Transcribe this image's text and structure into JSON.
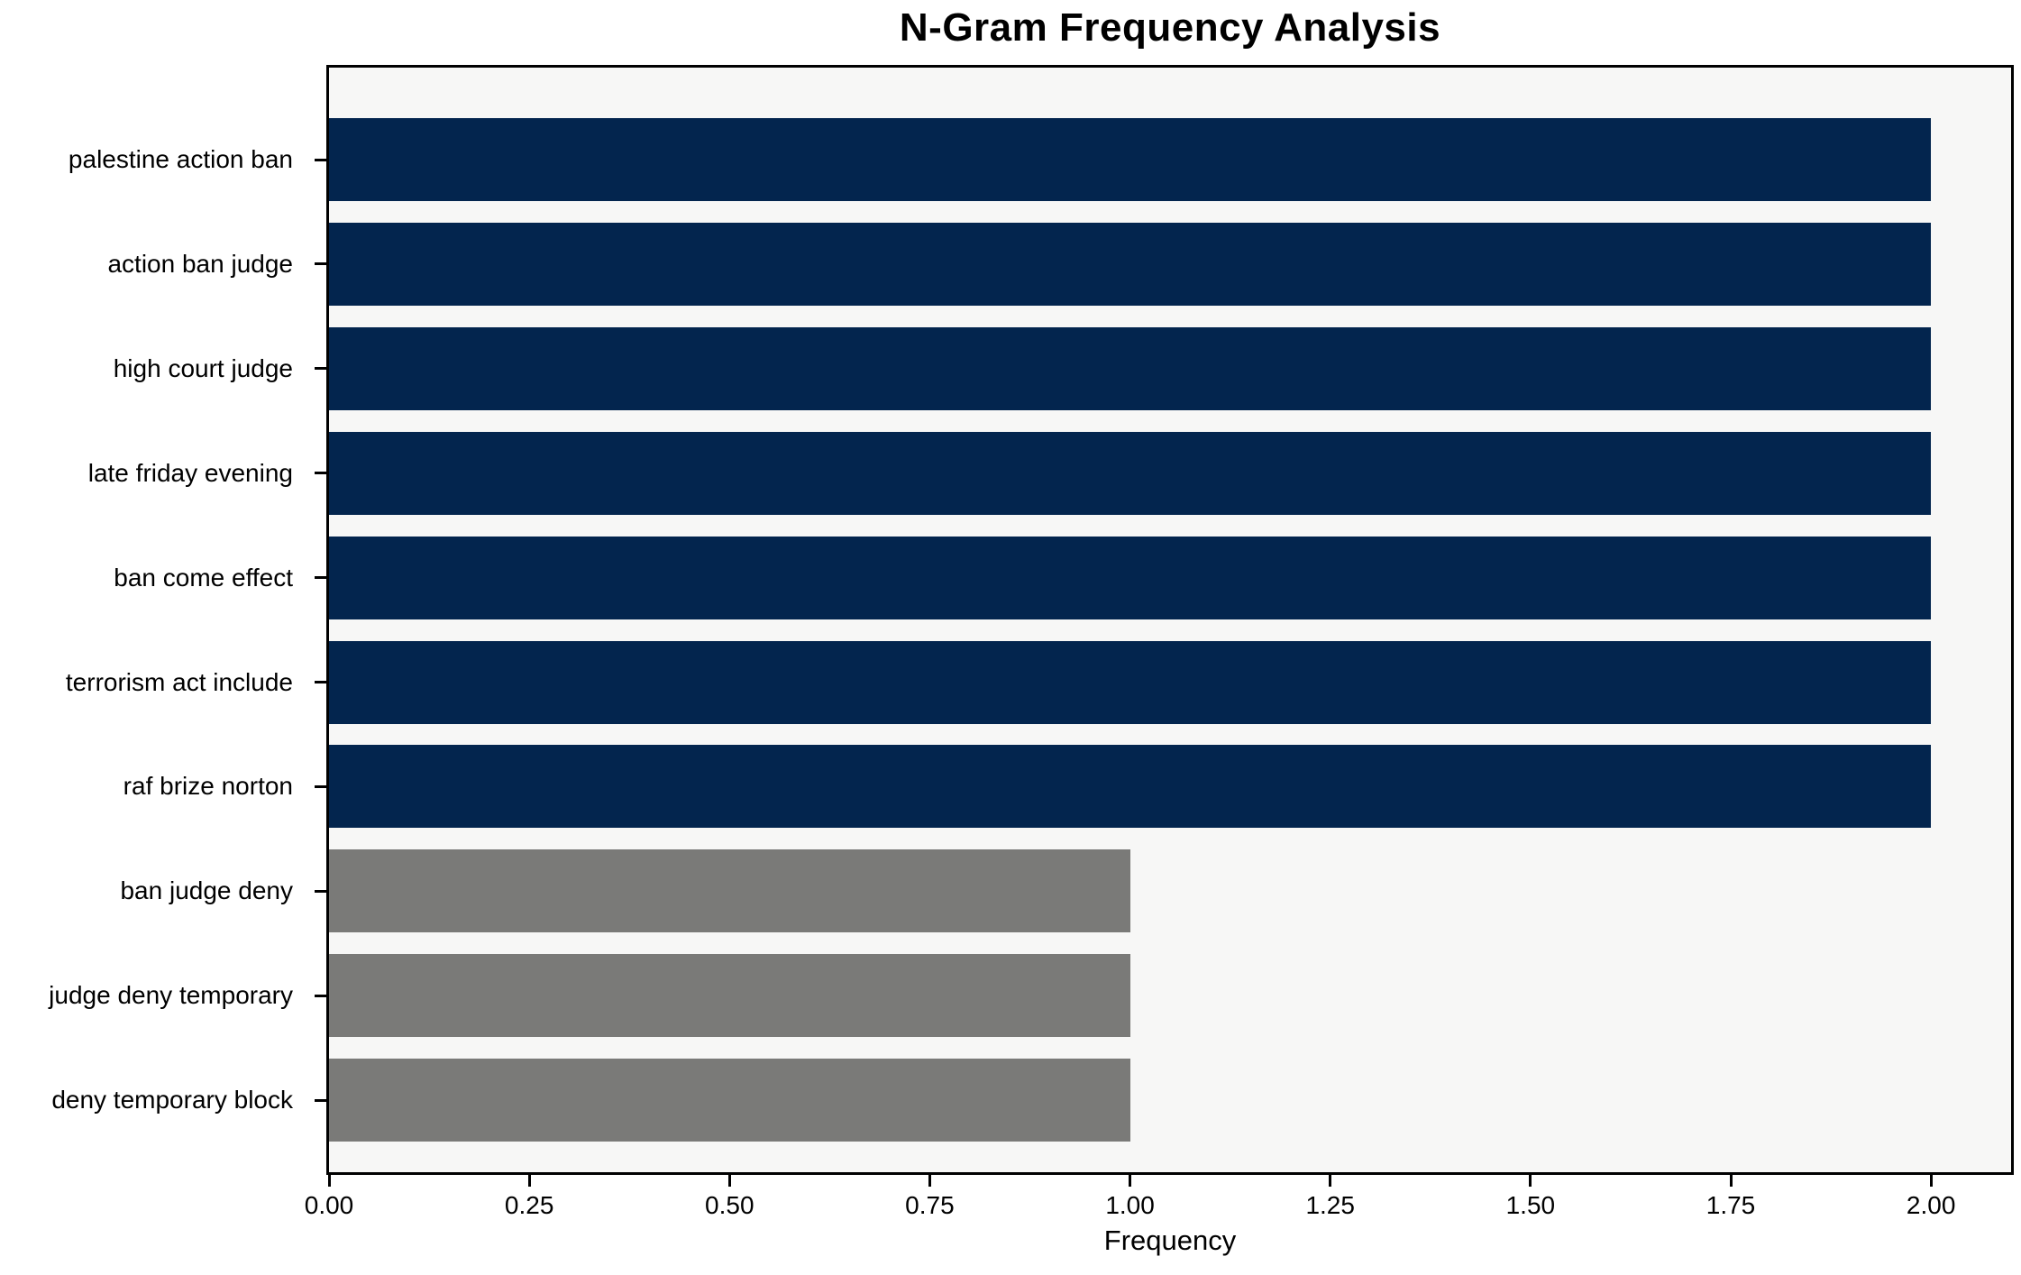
{
  "chart_data": {
    "type": "bar",
    "orientation": "horizontal",
    "title": "N-Gram Frequency Analysis",
    "xlabel": "Frequency",
    "ylabel": "",
    "categories": [
      "palestine action ban",
      "action ban judge",
      "high court judge",
      "late friday evening",
      "ban come effect",
      "terrorism act include",
      "raf brize norton",
      "ban judge deny",
      "judge deny temporary",
      "deny temporary block"
    ],
    "values": [
      2,
      2,
      2,
      2,
      2,
      2,
      2,
      1,
      1,
      1
    ],
    "bar_colors": [
      "#03254e",
      "#03254e",
      "#03254e",
      "#03254e",
      "#03254e",
      "#03254e",
      "#03254e",
      "#7a7a78",
      "#7a7a78",
      "#7a7a78"
    ],
    "xlim": [
      0,
      2.1
    ],
    "xticks": [
      0,
      0.25,
      0.5,
      0.75,
      1.0,
      1.25,
      1.5,
      1.75,
      2.0
    ],
    "xtick_labels": [
      "0.00",
      "0.25",
      "0.50",
      "0.75",
      "1.00",
      "1.25",
      "1.50",
      "1.75",
      "2.00"
    ],
    "grid": false,
    "legend_position": "none",
    "plot_background": "#f7f7f6",
    "figure_background": "#ffffff",
    "spine_color": "#000000"
  }
}
